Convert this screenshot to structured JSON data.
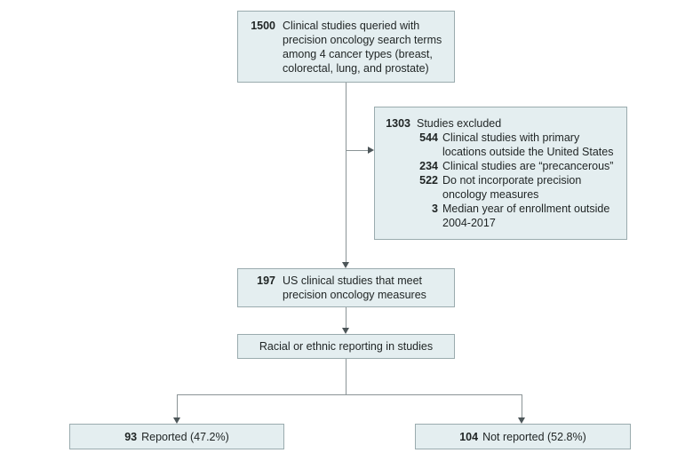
{
  "colors": {
    "box_fill": "#e4eef0",
    "box_border": "#9aabae",
    "line": "#8b9496",
    "arrowhead": "#4d5659",
    "text": "#1f2424",
    "background": "#ffffff"
  },
  "figure": {
    "boxes": {
      "queried": {
        "value": "1500",
        "label": "Clinical studies queried with precision oncology search terms among 4 cancer types (breast, colorectal, lung, and prostate)"
      },
      "excluded": {
        "value": "1303",
        "label": "Studies excluded",
        "items": [
          {
            "value": "544",
            "label": "Clinical studies with primary locations outside the United States"
          },
          {
            "value": "234",
            "label": "Clinical studies are “precancerous”"
          },
          {
            "value": "522",
            "label": "Do not incorporate precision oncology measures"
          },
          {
            "value": "3",
            "label": "Median year of enrollment outside 2004-2017"
          }
        ]
      },
      "included": {
        "value": "197",
        "label": "US clinical studies that meet precision oncology measures"
      },
      "reporting": {
        "label": "Racial or ethnic reporting in studies"
      },
      "reported": {
        "value": "93",
        "label": "Reported (47.2%)"
      },
      "not_reported": {
        "value": "104",
        "label": "Not reported (52.8%)"
      }
    }
  }
}
